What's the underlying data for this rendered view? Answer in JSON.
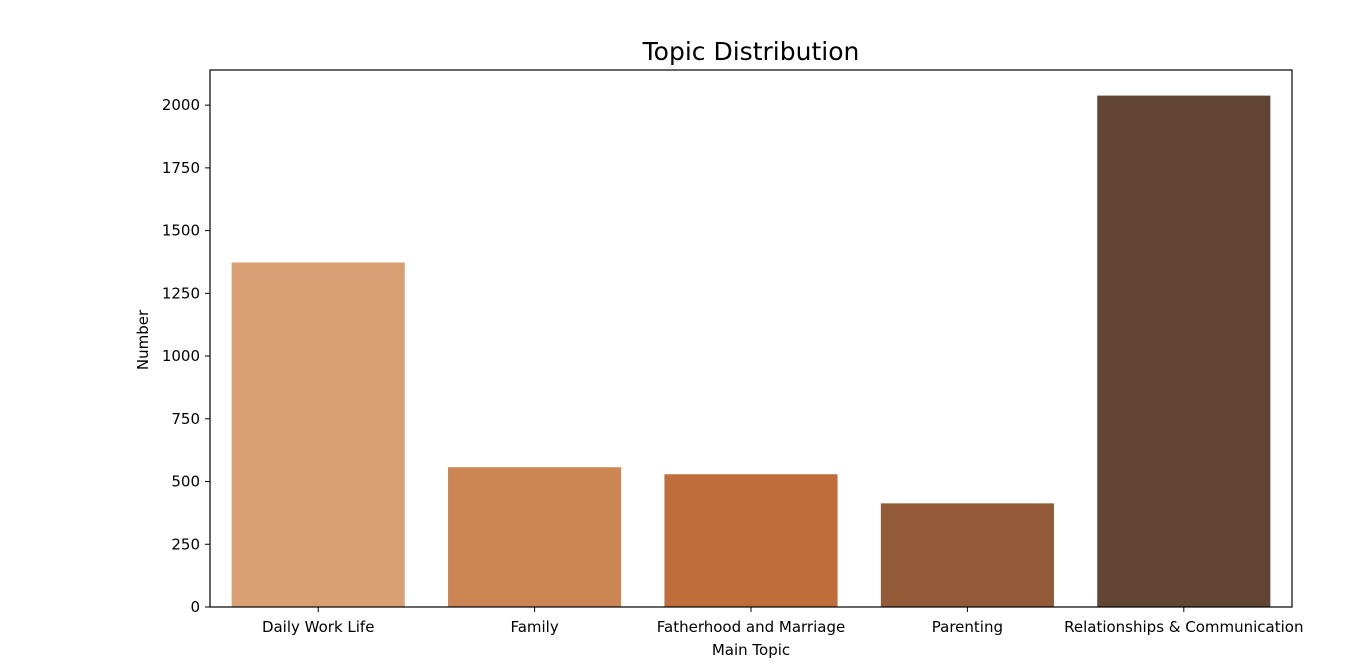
{
  "chart_data": {
    "type": "bar",
    "title": "Topic Distribution",
    "xlabel": "Main Topic",
    "ylabel": "Number",
    "categories": [
      "Daily Work Life",
      "Family",
      "Fatherhood and Marriage",
      "Parenting",
      "Relationships & Communication"
    ],
    "values": [
      1373,
      557,
      529,
      413,
      2038
    ],
    "colors": [
      "#d89f72",
      "#cb8654",
      "#bf6d3a",
      "#925a36",
      "#624633"
    ],
    "ylim": [
      0,
      2140
    ],
    "yticks": [
      0,
      250,
      500,
      750,
      1000,
      1250,
      1500,
      1750,
      2000
    ],
    "grid": false,
    "legend": "none"
  }
}
